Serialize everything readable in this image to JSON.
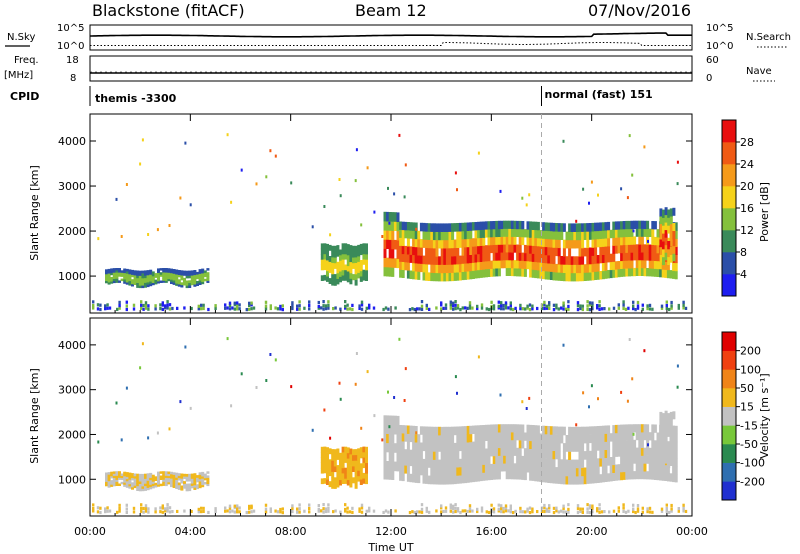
{
  "chart_data": {
    "type": "heatmap",
    "header": {
      "station": "Blackstone (fitACF)",
      "beam": "Beam 12",
      "date": "07/Nov/2016"
    },
    "time_axis": {
      "label": "Time UT",
      "ticks": [
        "00:00",
        "04:00",
        "08:00",
        "12:00",
        "16:00",
        "20:00",
        "00:00"
      ],
      "range_hours": [
        0,
        24
      ]
    },
    "noise_panel": {
      "left_label": "N.Sky",
      "right_label": "N.Search",
      "left_ticks": [
        "10^5",
        "10^0"
      ],
      "right_ticks": [
        "10^5",
        "10^0"
      ]
    },
    "freq_panel": {
      "left_label_top": "Freq.",
      "left_label_bottom": "[MHz]",
      "right_label": "Nave",
      "left_ticks": [
        "18",
        "8"
      ],
      "right_ticks": [
        "60",
        "0"
      ]
    },
    "cpid_panel": {
      "label": "CPID",
      "segments": [
        {
          "start_hour": 0.1,
          "text": "themis -3300"
        },
        {
          "start_hour": 18.0,
          "text": "normal (fast) 151"
        }
      ]
    },
    "range_axis": {
      "label": "Slant Range [km]",
      "ticks": [
        1000,
        2000,
        3000,
        4000
      ],
      "range_km": [
        180,
        4600
      ]
    },
    "power_panel": {
      "colorbar_label": "Power [dB]",
      "colorbar_ticks": [
        "4",
        "8",
        "12",
        "16",
        "20",
        "24",
        "28"
      ],
      "colors": [
        "#1e1ef0",
        "#2b4fa8",
        "#3a8a5a",
        "#84c03c",
        "#f5d21a",
        "#f59a1a",
        "#f05a14",
        "#e80e0e"
      ]
    },
    "velocity_panel": {
      "colorbar_label": "Velocity [m s⁻¹]",
      "colorbar_ticks": [
        "200",
        "100",
        "50",
        "15",
        "-15",
        "-50",
        "-100",
        "-200"
      ],
      "colors": [
        "#2030d0",
        "#2f6fb0",
        "#2a8a50",
        "#78c83a",
        "#c2c2c2",
        "#f0b81c",
        "#f08418",
        "#f04010",
        "#e00000"
      ]
    },
    "scatter_regions": [
      {
        "t0": 0.6,
        "t1": 4.7,
        "top": 1150,
        "bottom": 800
      },
      {
        "t0": 9.2,
        "t1": 11.0,
        "top": 1700,
        "bottom": 850
      },
      {
        "t0": 11.7,
        "t1": 23.4,
        "top": 2200,
        "bottom": 950
      },
      {
        "t0": 22.7,
        "t1": 23.3,
        "top": 2500,
        "bottom": 1300
      }
    ]
  }
}
